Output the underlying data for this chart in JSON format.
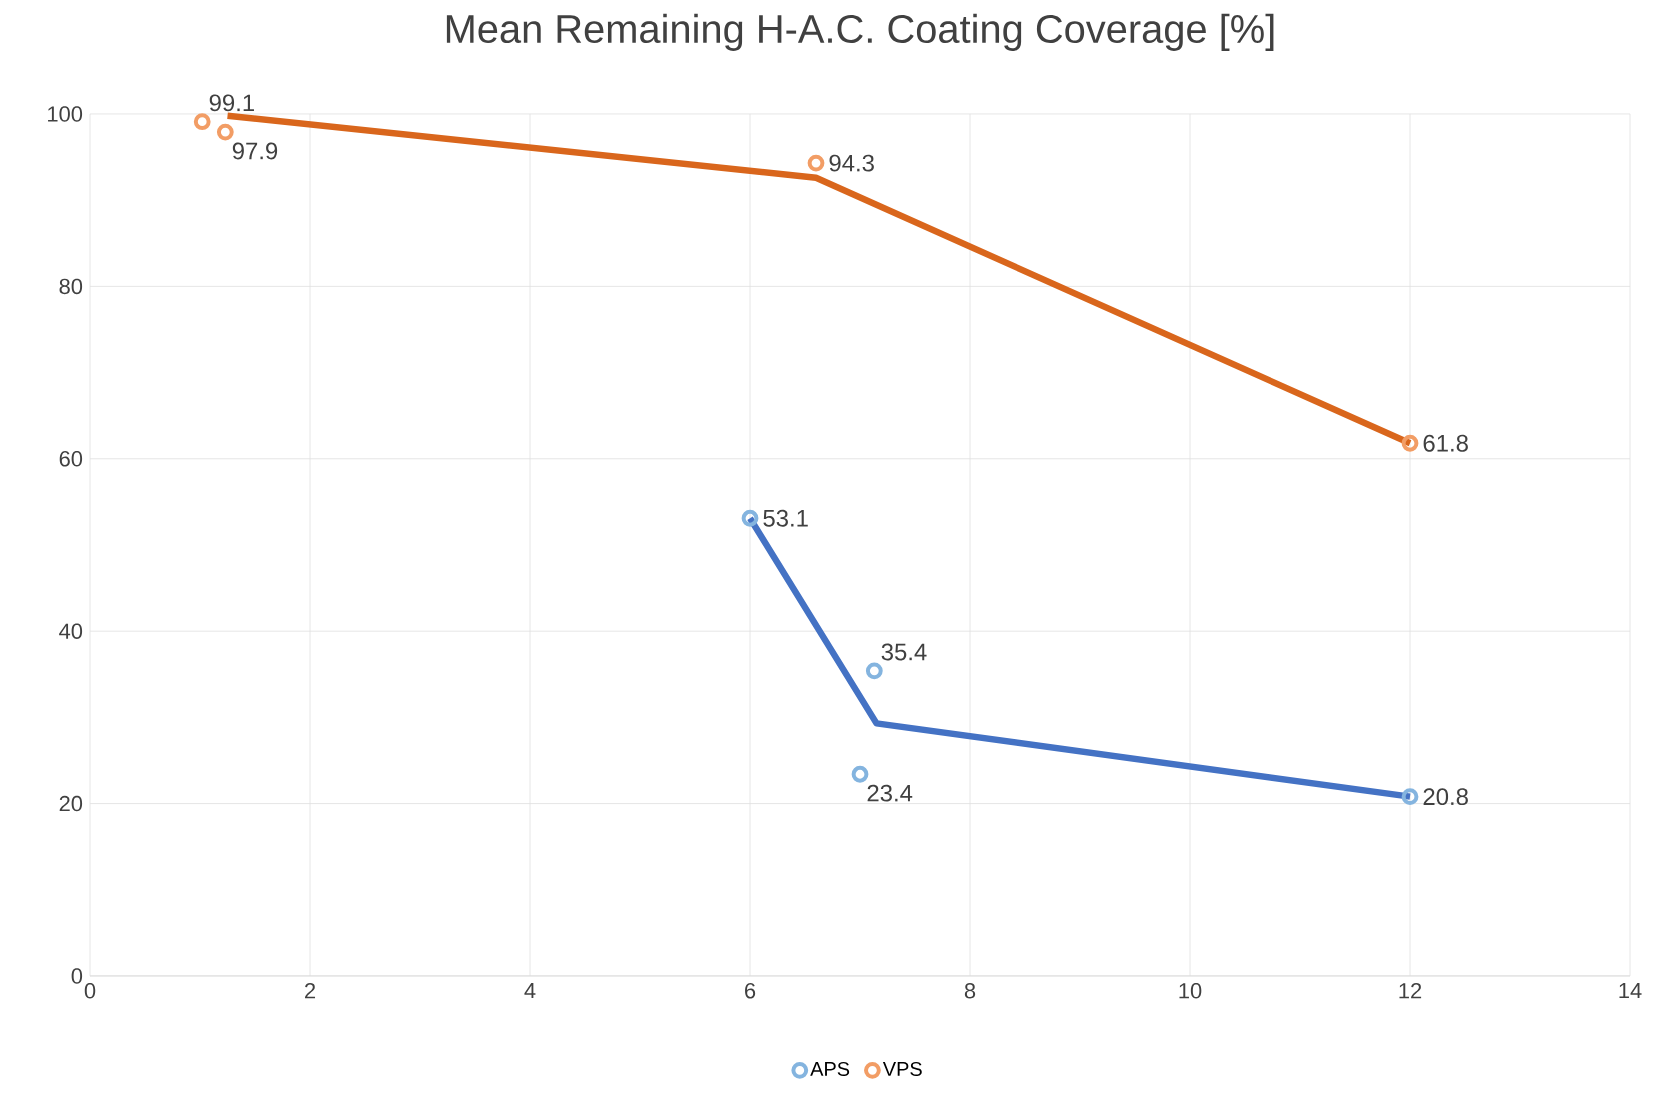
{
  "chart_data": {
    "type": "scatter",
    "title": "Mean Remaining H-A.C. Coating Coverage [%]",
    "series": [
      {
        "name": "APS",
        "color": "#84b4df",
        "marker": "circle",
        "x": [
          6,
          7.13,
          7.0,
          12
        ],
        "values": [
          53.1,
          35.4,
          23.4,
          20.8
        ],
        "value_labels": [
          "53.1",
          "35.4",
          "23.4",
          "20.8"
        ]
      },
      {
        "name": "VPS",
        "color": "#f29d65",
        "marker": "circle",
        "x": [
          1.02,
          1.23,
          6.6,
          12
        ],
        "values": [
          99.1,
          97.9,
          94.3,
          61.8
        ],
        "value_labels": [
          "99.1",
          "97.9",
          "94.3",
          "61.8"
        ]
      },
      {
        "type": "line",
        "color": "#4472c4",
        "marker": "none",
        "x": [
          6,
          7.15,
          12
        ],
        "values": [
          53.1,
          29.3,
          20.8
        ]
      },
      {
        "type": "line",
        "color": "#d9661c",
        "marker": "none",
        "x": [
          1.25,
          6.6,
          12
        ],
        "values": [
          99.8,
          92.6,
          61.8
        ]
      }
    ],
    "xlim": [
      0,
      14
    ],
    "xticks": [
      0,
      2,
      4,
      6,
      8,
      10,
      12,
      14
    ],
    "ylim": [
      0,
      100
    ],
    "yticks": [
      0,
      20,
      40,
      60,
      80,
      100
    ],
    "grid": true,
    "legend": "bottom"
  }
}
